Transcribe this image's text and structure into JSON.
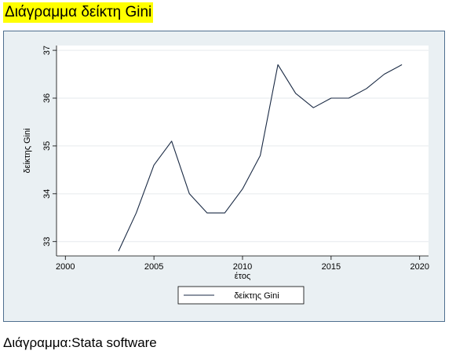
{
  "header": {
    "title": "Διάγραμμα δείκτη Gini"
  },
  "footer": {
    "caption": "Διάγραμμα:Stata software"
  },
  "colors": {
    "title_highlight": "#ffff00",
    "panel_background": "#eaf0f3",
    "plot_background": "#ffffff",
    "frame_border": "#4f6f8f",
    "series_line": "#1a2a44"
  },
  "chart_data": {
    "type": "line",
    "title": "",
    "xlabel": "έτος",
    "ylabel": "δείκτης Gini",
    "xlim": [
      1999.5,
      2020.5
    ],
    "ylim": [
      32.7,
      37.1
    ],
    "xticks": [
      2000,
      2005,
      2010,
      2015,
      2020
    ],
    "yticks": [
      33,
      34,
      35,
      36,
      37
    ],
    "grid": true,
    "legend_position": "bottom",
    "series": [
      {
        "name": "δείκτης Gini",
        "x": [
          2003,
          2004,
          2005,
          2006,
          2007,
          2008,
          2009,
          2010,
          2011,
          2012,
          2013,
          2014,
          2015,
          2016,
          2017,
          2018,
          2019
        ],
        "y": [
          32.8,
          33.6,
          34.6,
          35.1,
          34.0,
          33.6,
          33.6,
          34.1,
          34.8,
          36.7,
          36.1,
          35.8,
          36.0,
          36.0,
          36.2,
          36.5,
          36.7
        ]
      }
    ]
  }
}
